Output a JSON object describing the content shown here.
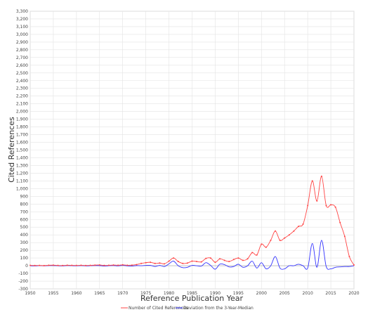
{
  "chart_data": {
    "type": "line",
    "xlabel": "Reference Publication Year",
    "ylabel": "Cited References",
    "xlim": [
      1950,
      2020
    ],
    "ylim": [
      -300,
      3300
    ],
    "x_ticks": [
      1950,
      1955,
      1960,
      1965,
      1970,
      1975,
      1980,
      1985,
      1990,
      1995,
      2000,
      2005,
      2010,
      2015,
      2020
    ],
    "y_tick_step": 100,
    "grid": true,
    "legend_position": "bottom-center",
    "x": [
      1950,
      1951,
      1952,
      1953,
      1954,
      1955,
      1956,
      1957,
      1958,
      1959,
      1960,
      1961,
      1962,
      1963,
      1964,
      1965,
      1966,
      1967,
      1968,
      1969,
      1970,
      1971,
      1972,
      1973,
      1974,
      1975,
      1976,
      1977,
      1978,
      1979,
      1980,
      1981,
      1982,
      1983,
      1984,
      1985,
      1986,
      1987,
      1988,
      1989,
      1990,
      1991,
      1992,
      1993,
      1994,
      1995,
      1996,
      1997,
      1998,
      1999,
      2000,
      2001,
      2002,
      2003,
      2004,
      2005,
      2006,
      2007,
      2008,
      2009,
      2010,
      2011,
      2012,
      2013,
      2014,
      2015,
      2016,
      2017,
      2018,
      2019,
      2020
    ],
    "series": [
      {
        "name": "Number of Cited References",
        "color": "#ff4444",
        "values": [
          5,
          3,
          4,
          2,
          6,
          8,
          4,
          3,
          7,
          5,
          4,
          6,
          3,
          5,
          8,
          10,
          4,
          6,
          9,
          7,
          12,
          6,
          8,
          15,
          30,
          40,
          45,
          30,
          35,
          25,
          60,
          100,
          55,
          30,
          35,
          60,
          55,
          50,
          95,
          100,
          45,
          90,
          70,
          55,
          80,
          100,
          70,
          90,
          170,
          140,
          280,
          240,
          330,
          450,
          330,
          360,
          400,
          450,
          510,
          540,
          780,
          1100,
          840,
          1160,
          780,
          790,
          760,
          560,
          380,
          120,
          10
        ],
        "markers": true
      },
      {
        "name": "Deviation from the 3-Year-Median",
        "color": "#3333ff",
        "values": [
          0,
          -2,
          1,
          -1,
          2,
          3,
          -1,
          -2,
          3,
          0,
          -1,
          2,
          -2,
          0,
          3,
          2,
          -4,
          0,
          3,
          -2,
          5,
          -2,
          -4,
          2,
          0,
          5,
          5,
          -10,
          5,
          -10,
          25,
          60,
          0,
          -25,
          -20,
          5,
          0,
          -5,
          40,
          5,
          -45,
          20,
          15,
          -15,
          -10,
          20,
          -20,
          0,
          60,
          -30,
          40,
          -40,
          0,
          120,
          -30,
          -40,
          0,
          0,
          20,
          0,
          -30,
          290,
          -20,
          330,
          -10,
          -40,
          -20,
          -15,
          -10,
          -10,
          0
        ]
      }
    ]
  }
}
